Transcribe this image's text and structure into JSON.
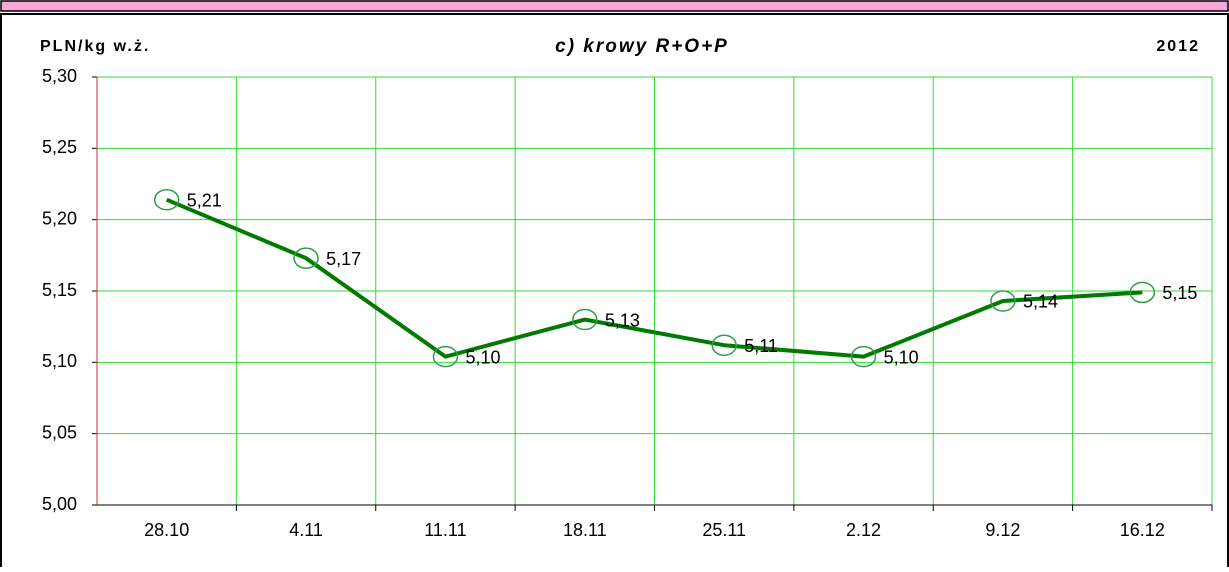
{
  "chart_data": {
    "type": "line",
    "title": "c) krowy R+O+P",
    "y_label": "PLN/kg w.ż.",
    "year": "2012",
    "categories": [
      "28.10",
      "4.11",
      "11.11",
      "18.11",
      "25.11",
      "2.12",
      "9.12",
      "16.12"
    ],
    "series": [
      {
        "name": "krowy R+O+P",
        "color": "#007a00",
        "values": [
          5.214,
          5.173,
          5.104,
          5.13,
          5.112,
          5.104,
          5.143,
          5.149
        ],
        "value_labels": [
          "5,21",
          "5,17",
          "5,10",
          "5,13",
          "5,11",
          "5,10",
          "5,14",
          "5,15"
        ]
      }
    ],
    "ylim": [
      5.0,
      5.3
    ],
    "yticks": [
      {
        "value": 5.0,
        "label": "5,00"
      },
      {
        "value": 5.05,
        "label": "5,05"
      },
      {
        "value": 5.1,
        "label": "5,10"
      },
      {
        "value": 5.15,
        "label": "5,15"
      },
      {
        "value": 5.2,
        "label": "5,20"
      },
      {
        "value": 5.25,
        "label": "5,25"
      },
      {
        "value": 5.3,
        "label": "5,30"
      }
    ],
    "grid": true,
    "grid_color": "#33dd33"
  }
}
